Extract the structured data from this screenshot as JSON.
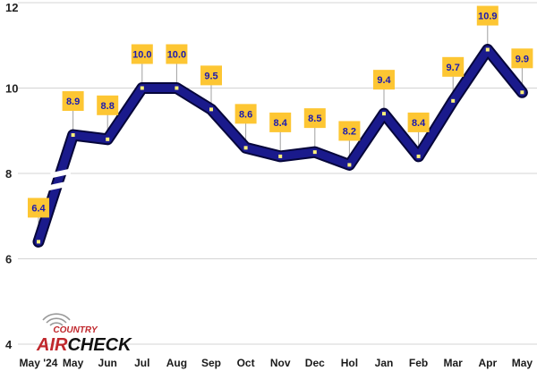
{
  "chart_data": {
    "type": "line",
    "categories": [
      "May '24",
      "May",
      "Jun",
      "Jul",
      "Aug",
      "Sep",
      "Oct",
      "Nov",
      "Dec",
      "Hol",
      "Jan",
      "Feb",
      "Mar",
      "Apr",
      "May"
    ],
    "series": [
      {
        "values": [
          6.4,
          8.9,
          8.8,
          10.0,
          10.0,
          9.5,
          8.6,
          8.4,
          8.5,
          8.2,
          9.4,
          8.4,
          9.7,
          10.9,
          9.9
        ]
      }
    ],
    "data_labels": [
      "6.4",
      "8.9",
      "8.8",
      "10.0",
      "10.0",
      "9.5",
      "8.6",
      "8.4",
      "8.5",
      "8.2",
      "9.4",
      "8.4",
      "9.7",
      "10.9",
      "9.9"
    ],
    "y_ticks": [
      "4",
      "6",
      "8",
      "10",
      "12"
    ],
    "ylim": [
      4,
      12
    ],
    "axis_break": "between May '24 and May",
    "grid": true,
    "colors": {
      "line": "#1a1a8c",
      "line_edge": "#06063a",
      "label_bg": "#fdc633",
      "marker": "#fff27a",
      "grid": "#d4d4d4"
    }
  },
  "logo": {
    "top": "COUNTRY",
    "air": "AIR",
    "check": "CHECK"
  }
}
